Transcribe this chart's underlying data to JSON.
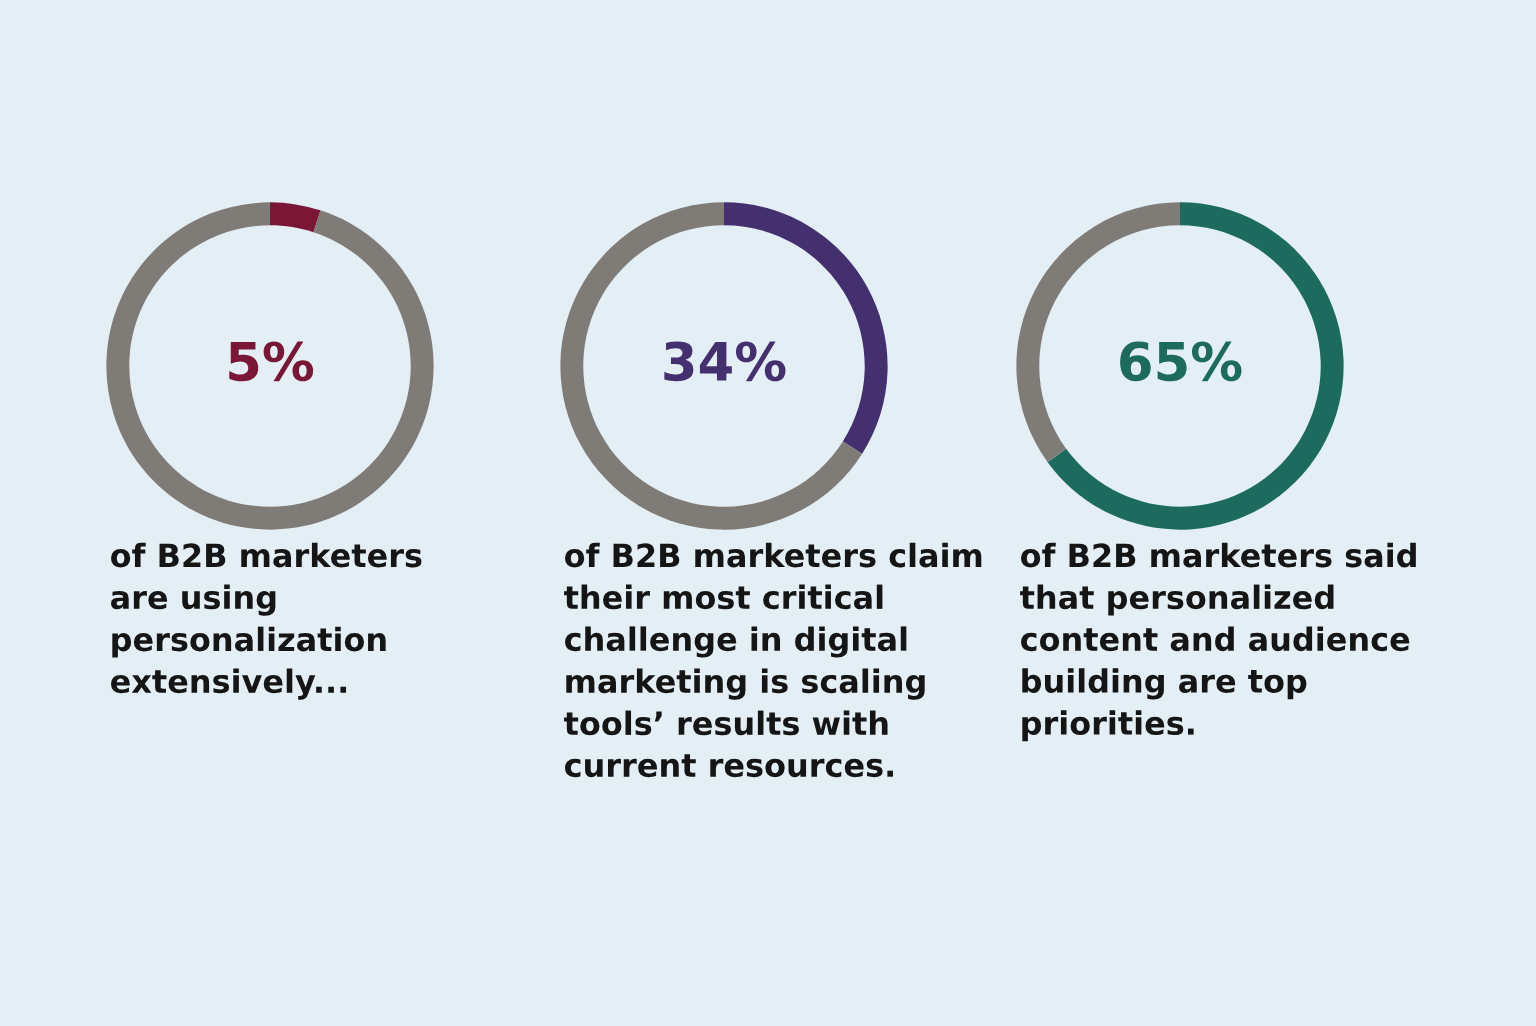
{
  "chart_data": [
    {
      "type": "donut",
      "categories": [
        null,
        null
      ],
      "values": [
        5,
        95
      ],
      "colors": [
        "#7a1636",
        "#7f7c78"
      ],
      "value_labels": [
        "5%",
        null
      ],
      "annotations": [
        "of B2B marketers\nare using\npersonalization\nextensively..."
      ]
    },
    {
      "type": "donut",
      "categories": [
        null,
        null
      ],
      "values": [
        34,
        66
      ],
      "colors": [
        "#44306e",
        "#7f7c78"
      ],
      "value_labels": [
        "34%",
        null
      ],
      "annotations": [
        "of B2B marketers claim\ntheir most critical\nchallenge in digital\nmarketing is scaling\ntools’ results with\ncurrent resources."
      ]
    },
    {
      "type": "donut",
      "categories": [
        null,
        null
      ],
      "values": [
        65,
        35
      ],
      "colors": [
        "#1d6b5e",
        "#7f7c78"
      ],
      "value_labels": [
        "65%",
        null
      ],
      "annotations": [
        "of B2B marketers said\nthat personalized\ncontent and audience\nbuilding are top\npriorities."
      ]
    }
  ]
}
